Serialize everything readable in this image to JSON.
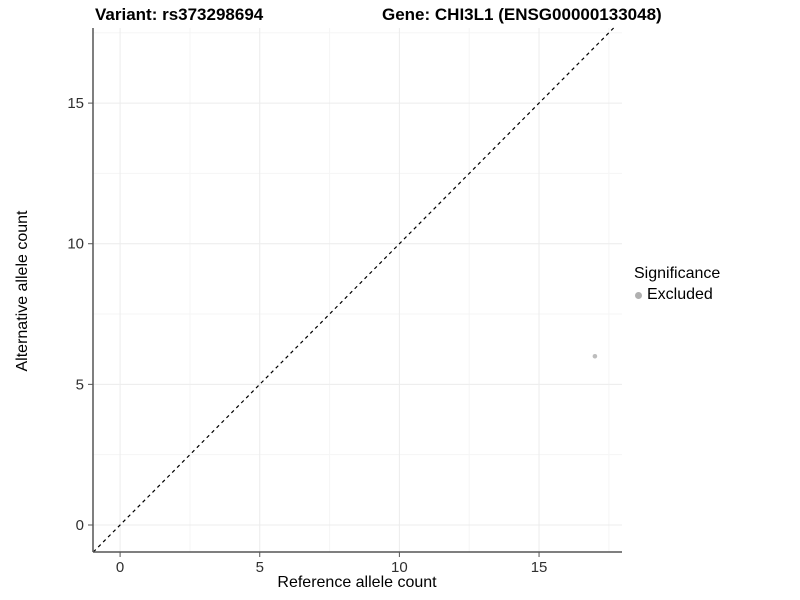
{
  "chart_data": {
    "type": "scatter",
    "title_left": "Variant: rs373298694",
    "title_right": "Gene: CHI3L1 (ENSG00000133048)",
    "xlabel": "Reference allele count",
    "ylabel": "Alternative allele count",
    "xlim": [
      -0.97,
      17.97
    ],
    "ylim": [
      -0.96,
      17.67
    ],
    "xticks": [
      0,
      5,
      10,
      15
    ],
    "yticks": [
      0,
      5,
      10,
      15
    ],
    "minor_xticks": [
      2.5,
      7.5,
      12.5,
      17.5
    ],
    "minor_yticks": [
      2.5,
      7.5,
      12.5,
      17.5
    ],
    "grid": "major and minor gridlines, no panel border, left and bottom axis lines",
    "identity_line": {
      "equation": "y = x",
      "style": "dashed",
      "color": "#000000"
    },
    "points": [
      {
        "x": 17,
        "y": 6,
        "significance": "Excluded"
      }
    ],
    "point_color": "#bdbdbd",
    "legend": {
      "title": "Significance",
      "position": "right",
      "items": [
        {
          "label": "Excluded",
          "color": "#b0b0b0"
        }
      ]
    },
    "colors": {
      "grid_major": "#ececec",
      "grid_minor": "#f5f5f5",
      "axis_line": "#555555",
      "tick_text": "#303030",
      "title_text": "#000000"
    }
  }
}
